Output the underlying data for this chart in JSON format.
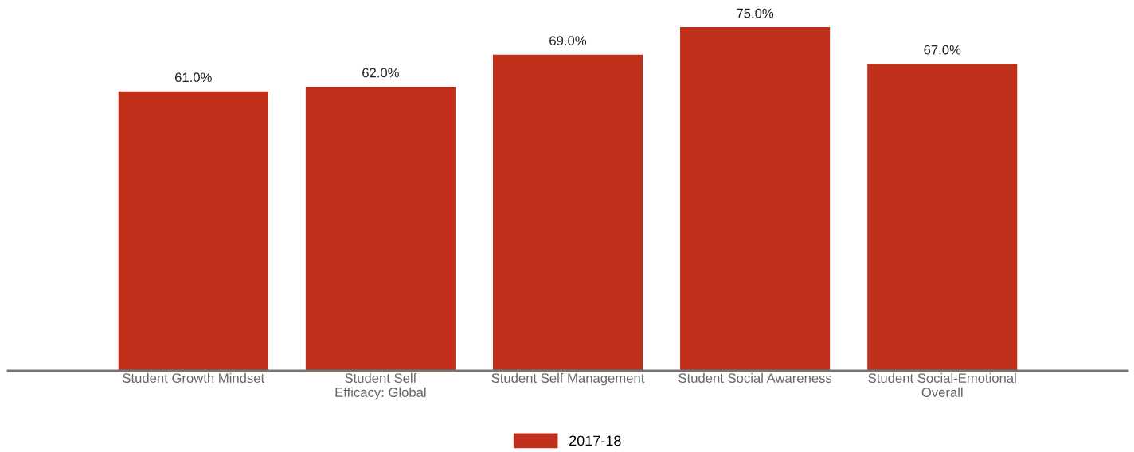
{
  "chart_data": {
    "type": "bar",
    "categories": [
      "Student Growth Mindset",
      "Student Self\nEfficacy: Global",
      "Student Self Management",
      "Student Social Awareness",
      "Student Social-Emotional\nOverall"
    ],
    "series": [
      {
        "name": "2017-18",
        "color": "#c0301a",
        "values": [
          61.0,
          62.0,
          69.0,
          75.0,
          67.0
        ],
        "value_labels": [
          "61.0%",
          "62.0%",
          "69.0%",
          "75.0%",
          "67.0%"
        ]
      }
    ],
    "tick_labels": "x",
    "grid": false,
    "legend": "bottom"
  }
}
